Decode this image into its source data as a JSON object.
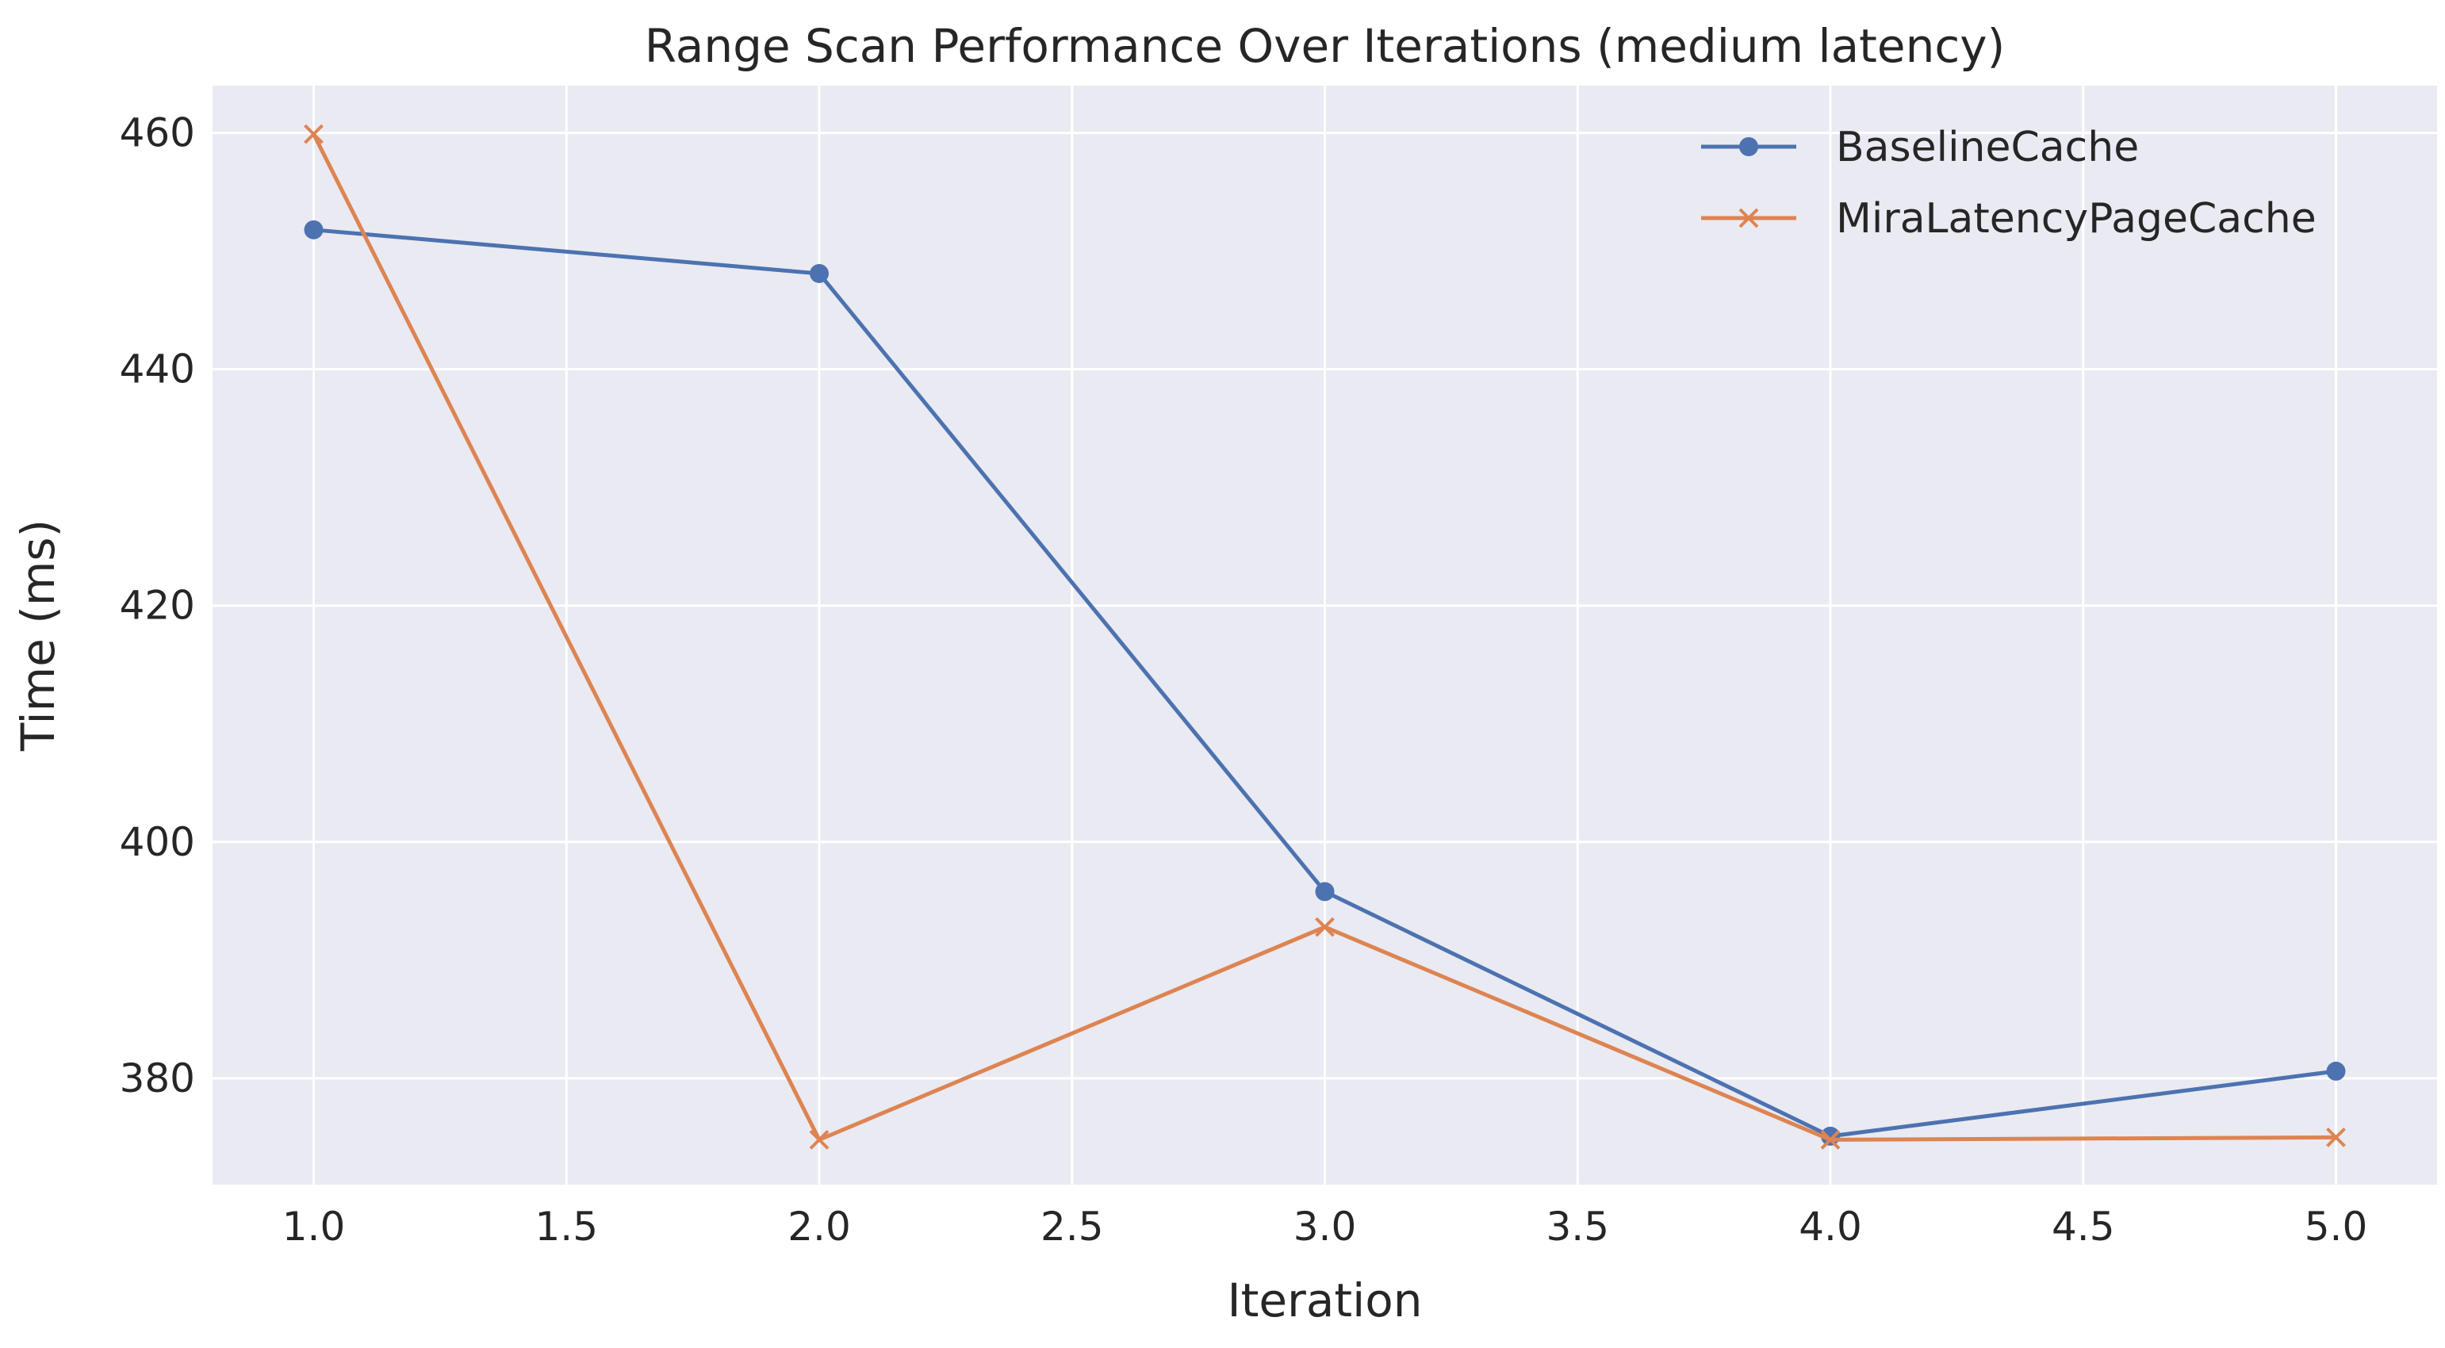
{
  "chart_data": {
    "type": "line",
    "title": "Range Scan Performance Over Iterations (medium latency)",
    "xlabel": "Iteration",
    "ylabel": "Time (ms)",
    "x": [
      1.0,
      2.0,
      3.0,
      4.0,
      5.0
    ],
    "xlim": [
      0.8,
      5.2
    ],
    "ylim": [
      371,
      464
    ],
    "xticks": [
      1.0,
      1.5,
      2.0,
      2.5,
      3.0,
      3.5,
      4.0,
      4.5,
      5.0
    ],
    "xtick_labels": [
      "1.0",
      "1.5",
      "2.0",
      "2.5",
      "3.0",
      "3.5",
      "4.0",
      "4.5",
      "5.0"
    ],
    "yticks": [
      380,
      400,
      420,
      440,
      460
    ],
    "ytick_labels": [
      "380",
      "400",
      "420",
      "440",
      "460"
    ],
    "grid": true,
    "legend_position": "upper-right",
    "background_color": "#eaeaf2",
    "grid_color": "#ffffff",
    "series": [
      {
        "name": "BaselineCache",
        "color": "#4c72b0",
        "marker": "circle",
        "values": [
          451.8,
          448.1,
          395.8,
          375.1,
          380.6
        ]
      },
      {
        "name": "MiraLatencyPageCache",
        "color": "#dd8452",
        "marker": "x",
        "values": [
          459.9,
          374.8,
          392.8,
          374.8,
          375.0
        ]
      }
    ]
  }
}
